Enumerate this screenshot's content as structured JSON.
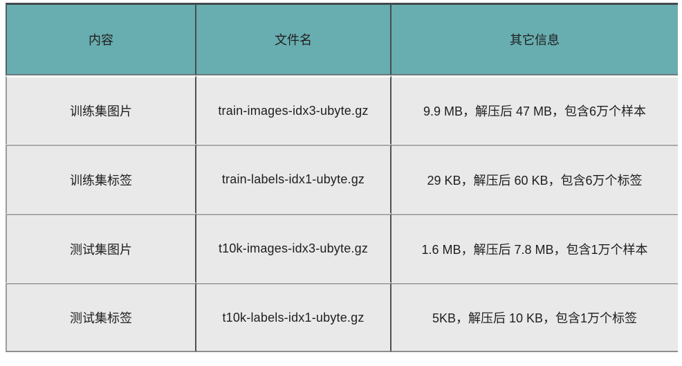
{
  "table": {
    "columns": [
      {
        "label": "内容"
      },
      {
        "label": "文件名"
      },
      {
        "label": "其它信息"
      }
    ],
    "rows": [
      {
        "content": "训练集图片",
        "filename": "train-images-idx3-ubyte.gz",
        "info": "9.9 MB，解压后 47 MB，包含6万个样本"
      },
      {
        "content": "训练集标签",
        "filename": "train-labels-idx1-ubyte.gz",
        "info": "29 KB，解压后 60 KB，包含6万个标签"
      },
      {
        "content": "测试集图片",
        "filename": "t10k-images-idx3-ubyte.gz",
        "info": "1.6 MB，解压后 7.8 MB，包含1万个样本"
      },
      {
        "content": "测试集标签",
        "filename": "t10k-labels-idx1-ubyte.gz",
        "info": "5KB，解压后 10 KB，包含1万个标签"
      }
    ],
    "colors": {
      "header_bg": "#68ADB0",
      "row_bg": "#E9E9E9",
      "divider_dark": "#454E51",
      "row_separator": "#A6A6A6",
      "text": "#1E1E1E"
    }
  }
}
